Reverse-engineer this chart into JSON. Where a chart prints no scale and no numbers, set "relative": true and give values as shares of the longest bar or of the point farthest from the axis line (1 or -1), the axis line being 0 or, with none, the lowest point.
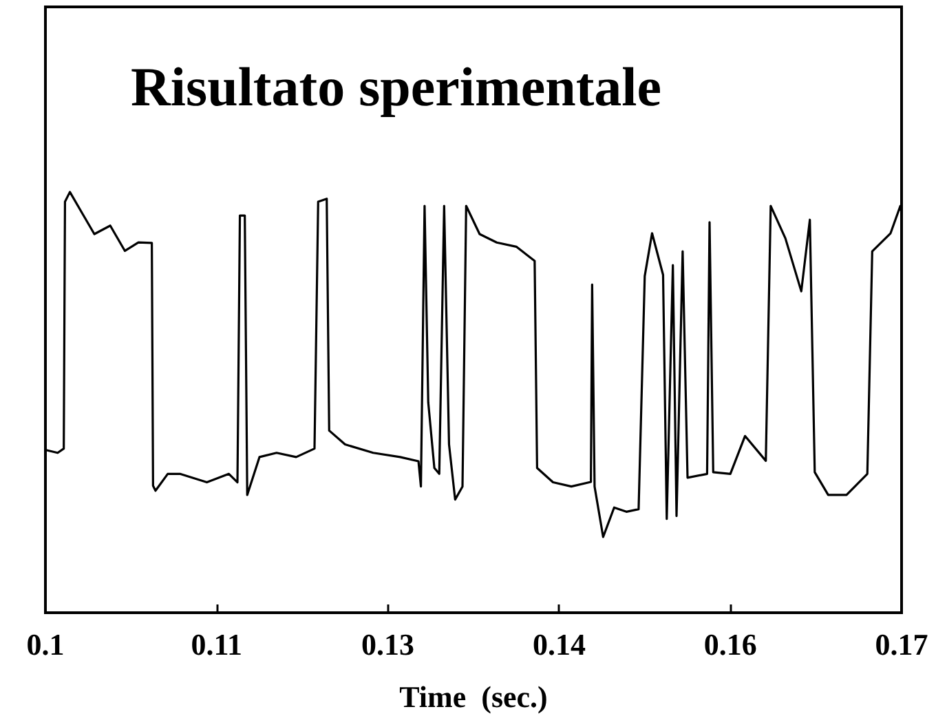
{
  "chart_data": {
    "type": "line",
    "title": "Risultato sperimentale",
    "xlabel": "Time  (sec.)",
    "relative": true,
    "xlim": [
      0.1,
      0.17
    ],
    "xticks": [
      {
        "value": 0.1,
        "label": "0.1"
      },
      {
        "value": 0.114,
        "label": "0.11"
      },
      {
        "value": 0.128,
        "label": "0.13"
      },
      {
        "value": 0.142,
        "label": "0.14"
      },
      {
        "value": 0.156,
        "label": "0.16"
      },
      {
        "value": 0.17,
        "label": "0.17"
      }
    ],
    "series": [
      {
        "color": "#000000",
        "x": [
          0.1,
          0.101,
          0.1015,
          0.1016,
          0.102,
          0.103,
          0.104,
          0.1053,
          0.1065,
          0.1076,
          0.1087,
          0.1088,
          0.109,
          0.11,
          0.111,
          0.1132,
          0.115,
          0.1157,
          0.1159,
          0.1163,
          0.1165,
          0.1175,
          0.1189,
          0.1205,
          0.122,
          0.1223,
          0.123,
          0.1232,
          0.1245,
          0.1268,
          0.129,
          0.1305,
          0.1307,
          0.131,
          0.1313,
          0.1318,
          0.1322,
          0.1326,
          0.133,
          0.1335,
          0.1341,
          0.1344,
          0.1355,
          0.1369,
          0.1385,
          0.14,
          0.1402,
          0.1415,
          0.143,
          0.1446,
          0.1447,
          0.1449,
          0.1456,
          0.1465,
          0.1475,
          0.1485,
          0.149,
          0.1496,
          0.1505,
          0.1508,
          0.1513,
          0.1516,
          0.1521,
          0.1525,
          0.1541,
          0.1543,
          0.1546,
          0.156,
          0.1572,
          0.1589,
          0.1593,
          0.1605,
          0.1618,
          0.1625,
          0.1629,
          0.164,
          0.1655,
          0.1672,
          0.1676,
          0.1691,
          0.1699,
          0.17
        ],
        "values": [
          0.387,
          0.38,
          0.39,
          0.977,
          1,
          0.95,
          0.9,
          0.92,
          0.86,
          0.88,
          0.879,
          0.302,
          0.29,
          0.33,
          0.33,
          0.31,
          0.33,
          0.31,
          0.944,
          0.944,
          0.28,
          0.37,
          0.38,
          0.37,
          0.39,
          0.977,
          0.984,
          0.433,
          0.4,
          0.38,
          0.37,
          0.36,
          0.3,
          0.967,
          0.5,
          0.344,
          0.33,
          0.967,
          0.4,
          0.269,
          0.3,
          0.967,
          0.9,
          0.88,
          0.87,
          0.836,
          0.344,
          0.31,
          0.3,
          0.311,
          0.78,
          0.3,
          0.18,
          0.25,
          0.24,
          0.246,
          0.8,
          0.902,
          0.803,
          0.223,
          0.826,
          0.23,
          0.859,
          0.321,
          0.33,
          0.928,
          0.334,
          0.33,
          0.42,
          0.361,
          0.967,
          0.89,
          0.764,
          0.934,
          0.334,
          0.28,
          0.28,
          0.33,
          0.859,
          0.902,
          0.967,
          0.95
        ]
      }
    ]
  }
}
